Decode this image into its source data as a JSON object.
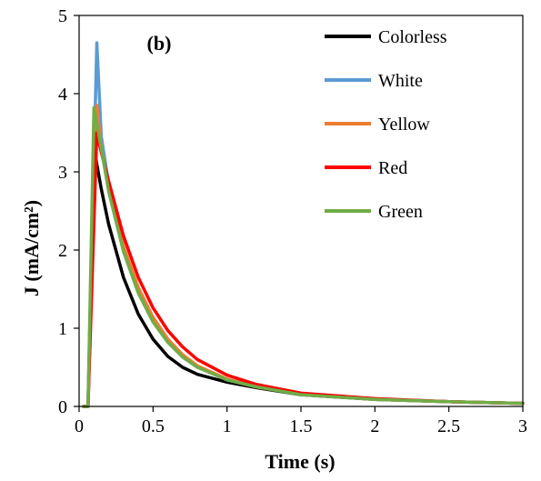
{
  "chart_data": {
    "type": "line",
    "panel_label": "(b)",
    "xlabel": "Time (s)",
    "ylabel": "J (mA/cm²)",
    "xlim": [
      0,
      3
    ],
    "ylim": [
      0,
      5
    ],
    "xticks": [
      0,
      0.5,
      1,
      1.5,
      2,
      2.5,
      3
    ],
    "yticks": [
      0,
      1,
      2,
      3,
      4,
      5
    ],
    "xtick_labels": [
      "0",
      "0.5",
      "1",
      "1.5",
      "2",
      "2.5",
      "3"
    ],
    "ytick_labels": [
      "0",
      "1",
      "2",
      "3",
      "4",
      "5"
    ],
    "grid": false,
    "legend_position": "top-right",
    "series": [
      {
        "name": "Colorless",
        "color": "#000000",
        "x": [
          0.03,
          0.06,
          0.1,
          0.15,
          0.2,
          0.3,
          0.4,
          0.5,
          0.6,
          0.7,
          0.8,
          1.0,
          1.2,
          1.5,
          2.0,
          2.5,
          3.0
        ],
        "y": [
          0,
          0,
          3.3,
          2.78,
          2.33,
          1.65,
          1.18,
          0.86,
          0.64,
          0.5,
          0.41,
          0.31,
          0.24,
          0.15,
          0.09,
          0.06,
          0.04
        ]
      },
      {
        "name": "White",
        "color": "#5B9BD5",
        "x": [
          0.03,
          0.06,
          0.12,
          0.15,
          0.2,
          0.3,
          0.4,
          0.5,
          0.6,
          0.7,
          0.8,
          1.0,
          1.2,
          1.5,
          2.0,
          2.5,
          3.0
        ],
        "y": [
          0,
          0,
          4.65,
          3.45,
          2.85,
          2.02,
          1.48,
          1.1,
          0.83,
          0.64,
          0.51,
          0.34,
          0.25,
          0.16,
          0.09,
          0.06,
          0.04
        ]
      },
      {
        "name": "Yellow",
        "color": "#ED7D31",
        "x": [
          0.03,
          0.06,
          0.12,
          0.15,
          0.2,
          0.3,
          0.4,
          0.5,
          0.6,
          0.7,
          0.8,
          1.0,
          1.2,
          1.5,
          2.0,
          2.5,
          3.0
        ],
        "y": [
          0,
          0,
          3.85,
          3.3,
          2.8,
          2.05,
          1.52,
          1.14,
          0.86,
          0.66,
          0.52,
          0.35,
          0.25,
          0.16,
          0.09,
          0.06,
          0.04
        ]
      },
      {
        "name": "Red",
        "color": "#FF0000",
        "x": [
          0.03,
          0.06,
          0.12,
          0.15,
          0.2,
          0.3,
          0.4,
          0.5,
          0.6,
          0.7,
          0.8,
          1.0,
          1.2,
          1.5,
          2.0,
          2.5,
          3.0
        ],
        "y": [
          0,
          0,
          3.5,
          3.25,
          2.88,
          2.18,
          1.65,
          1.26,
          0.97,
          0.76,
          0.6,
          0.4,
          0.28,
          0.17,
          0.1,
          0.06,
          0.04
        ]
      },
      {
        "name": "Green",
        "color": "#70AD47",
        "x": [
          0.03,
          0.06,
          0.1,
          0.15,
          0.2,
          0.3,
          0.4,
          0.5,
          0.6,
          0.7,
          0.8,
          1.0,
          1.2,
          1.5,
          2.0,
          2.5,
          3.0
        ],
        "y": [
          0,
          0,
          3.82,
          3.3,
          2.75,
          1.98,
          1.45,
          1.08,
          0.82,
          0.63,
          0.5,
          0.34,
          0.25,
          0.15,
          0.09,
          0.06,
          0.04
        ]
      }
    ]
  }
}
